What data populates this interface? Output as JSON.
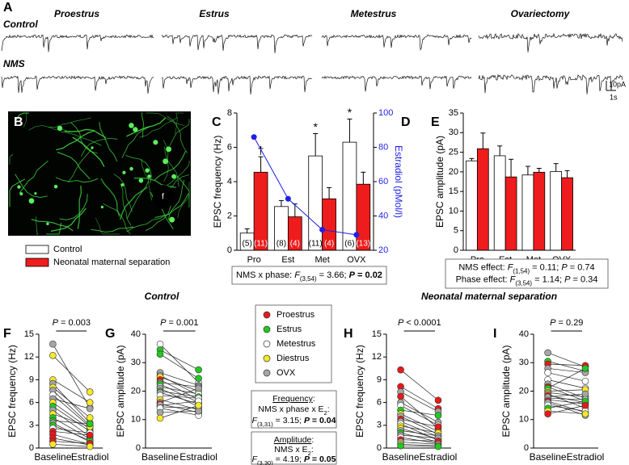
{
  "panel_a": {
    "label": "A",
    "phases": [
      "Proestrus",
      "Estrus",
      "Metestrus",
      "Ovariectomy"
    ],
    "rows": [
      "Control",
      "NMS"
    ],
    "scale": [
      "10pA",
      "1s"
    ]
  },
  "panel_b": {
    "label": "B",
    "marker": "f"
  },
  "panel_d": {
    "label": "D"
  },
  "sections": [
    "Control",
    "Neonatal maternal separation"
  ],
  "phase_legend": [
    {
      "name": "Proestrus",
      "color": "#e8191c"
    },
    {
      "name": "Estrus",
      "color": "#22c922"
    },
    {
      "name": "Metestrus",
      "color": "#ffffff"
    },
    {
      "name": "Diestrus",
      "color": "#f5e92a"
    },
    {
      "name": "OVX",
      "color": "#a6a6a6"
    }
  ],
  "stats_boxes": [
    [
      [
        {
          "text": "Frequency",
          "style": "underline"
        },
        {
          "text": ":"
        }
      ],
      [
        {
          "text": "NMS x phase x E"
        },
        {
          "text": "2",
          "style": "sub"
        },
        {
          "text": ":"
        }
      ],
      [
        {
          "text": "F",
          "style": "italic"
        },
        {
          "text": "(3,31)",
          "style": "sub"
        },
        {
          "text": " = 3.15; "
        },
        {
          "text": "P",
          "style": "bold-italic"
        },
        {
          "text": " = 0.04",
          "style": "bold"
        }
      ]
    ],
    [
      [
        {
          "text": "Amplitude",
          "style": "underline"
        },
        {
          "text": ":"
        }
      ],
      [
        {
          "text": "NMS x E"
        },
        {
          "text": "2",
          "style": "sub"
        },
        {
          "text": ":"
        }
      ],
      [
        {
          "text": "F",
          "style": "italic"
        },
        {
          "text": "(3,30)",
          "style": "sub"
        },
        {
          "text": " = 4.19; "
        },
        {
          "text": "P",
          "style": "bold-italic"
        },
        {
          "text": " = 0.05",
          "style": "bold"
        }
      ]
    ]
  ],
  "chart_data": [
    {
      "type": "bar",
      "panel_label": "C",
      "ylabel": "EPSC frequency (Hz)",
      "y2label": "Estradiol (pMol/l)",
      "categories": [
        "Pro",
        "Est",
        "Met",
        "OVX"
      ],
      "series": [
        {
          "name": "Control",
          "color": "#ffffff",
          "values": [
            1.0,
            2.55,
            5.5,
            6.3
          ],
          "errors": [
            0.25,
            0.35,
            1.3,
            1.35
          ],
          "n_labels": [
            "(5)",
            "(8)",
            "(11)",
            "(6)"
          ],
          "markers": [
            null,
            null,
            "*",
            "*"
          ]
        },
        {
          "name": "Neonatal maternal separation",
          "color": "#ee1c1c",
          "values": [
            4.55,
            1.95,
            3.0,
            3.85
          ],
          "errors": [
            0.9,
            0.75,
            0.65,
            0.7
          ],
          "n_labels": [
            "(11)",
            "(4)",
            "(4)",
            "(13)"
          ],
          "markers": [
            "†",
            null,
            null,
            null
          ]
        }
      ],
      "estradiol": {
        "axis": "y2",
        "color": "#1f1fe8",
        "values": [
          86,
          50,
          32,
          29
        ]
      },
      "ylim": [
        0,
        8
      ],
      "yticks": [
        0,
        2,
        4,
        6,
        8
      ],
      "y2lim": [
        20,
        100
      ],
      "y2ticks": [
        20,
        40,
        60,
        80,
        100
      ],
      "stats": [
        [
          {
            "text": "NMS x phase: "
          },
          {
            "text": "F",
            "style": "italic"
          },
          {
            "text": "(3,54)",
            "style": "sub"
          },
          {
            "text": " = 3.66; "
          },
          {
            "text": "P",
            "style": "bold-italic"
          },
          {
            "text": " = 0.02",
            "style": "bold"
          }
        ]
      ]
    },
    {
      "type": "bar",
      "panel_label": "E",
      "ylabel": "EPSC amplitude (pA)",
      "categories": [
        "Pro",
        "Est",
        "Met",
        "OVX"
      ],
      "series": [
        {
          "name": "Control",
          "color": "#ffffff",
          "values": [
            22.8,
            24.1,
            19.2,
            20.1
          ],
          "errors": [
            0.6,
            2.5,
            2.2,
            2.0
          ]
        },
        {
          "name": "Neonatal maternal separation",
          "color": "#ee1c1c",
          "values": [
            25.9,
            18.7,
            19.9,
            18.5
          ],
          "errors": [
            4.0,
            4.5,
            1.0,
            1.8
          ]
        }
      ],
      "ylim": [
        0,
        35
      ],
      "yticks": [
        0,
        5,
        10,
        15,
        20,
        25,
        30,
        35
      ],
      "stats": [
        [
          {
            "text": "NMS effect: "
          },
          {
            "text": "F",
            "style": "italic"
          },
          {
            "text": "(1,54)",
            "style": "sub"
          },
          {
            "text": " = 0.11; "
          },
          {
            "text": "P",
            "style": "italic"
          },
          {
            "text": " = 0.74"
          }
        ],
        [
          {
            "text": "Phase effect: "
          },
          {
            "text": "F",
            "style": "italic"
          },
          {
            "text": "(3,54)",
            "style": "sub"
          },
          {
            "text": " = 1.14; "
          },
          {
            "text": "P",
            "style": "italic"
          },
          {
            "text": " = 0.34"
          }
        ]
      ]
    },
    {
      "type": "paired",
      "panel_label": "F",
      "ylabel": "EPSC frequency (Hz)",
      "categories": [
        "Baseline",
        "Estradiol"
      ],
      "baseline": [
        13.7,
        12.2,
        9.0,
        8.5,
        8.0,
        7.6,
        7.0,
        6.5,
        6.0,
        5.5,
        5.0,
        4.5,
        4.0,
        3.6,
        3.3,
        3.0,
        2.6,
        2.2,
        1.8,
        1.3,
        0.9,
        0.5
      ],
      "estradiol": [
        5.3,
        7.4,
        6.0,
        3.3,
        4.0,
        3.0,
        2.8,
        5.2,
        2.5,
        2.2,
        1.5,
        2.8,
        1.2,
        3.2,
        0.8,
        1.0,
        2.0,
        1.7,
        0.5,
        0.4,
        0.6,
        0.2
      ],
      "phase": [
        4,
        3,
        3,
        4,
        3,
        4,
        2,
        4,
        3,
        1,
        4,
        3,
        1,
        1,
        4,
        1,
        2,
        0,
        0,
        0,
        0,
        3
      ],
      "ylim": [
        0,
        15
      ],
      "yticks": [
        0,
        3,
        6,
        9,
        12,
        15
      ],
      "p_label": [
        {
          "text": "P",
          "style": "italic"
        },
        {
          "text": " = 0.003"
        }
      ]
    },
    {
      "type": "paired",
      "panel_label": "G",
      "ylabel": "EPSC amplitude (pA)",
      "categories": [
        "Baseline",
        "Estradiol"
      ],
      "baseline": [
        36.5,
        34.5,
        33.0,
        26.5,
        25.5,
        25.0,
        24.0,
        23.0,
        22.5,
        21.5,
        21.0,
        20.0,
        19.5,
        18.5,
        17.0,
        16.0,
        15.5,
        15.0,
        14.5,
        14.0,
        12.5,
        10.5
      ],
      "estradiol": [
        23.0,
        27.5,
        24.5,
        22.0,
        18.5,
        20.0,
        17.0,
        21.5,
        16.0,
        19.0,
        14.5,
        18.0,
        15.5,
        17.5,
        13.5,
        21.0,
        12.5,
        16.5,
        14.0,
        11.5,
        13.0,
        15.0
      ],
      "phase": [
        2,
        1,
        1,
        4,
        4,
        3,
        0,
        4,
        1,
        2,
        4,
        1,
        4,
        2,
        3,
        4,
        0,
        2,
        4,
        2,
        4,
        3
      ],
      "ylim": [
        0,
        40
      ],
      "yticks": [
        0,
        10,
        20,
        30,
        40
      ],
      "p_label": [
        {
          "text": "P",
          "style": "italic"
        },
        {
          "text": " = 0.001"
        }
      ]
    },
    {
      "type": "paired",
      "panel_label": "H",
      "ylabel": "EPSC frequency (Hz)",
      "categories": [
        "Baseline",
        "Estradiol"
      ],
      "baseline": [
        10.3,
        8.1,
        7.4,
        6.8,
        6.0,
        5.6,
        5.0,
        4.5,
        4.2,
        3.8,
        3.5,
        3.2,
        2.9,
        2.6,
        2.3,
        2.0,
        1.7,
        1.4,
        1.1,
        0.8,
        0.5,
        0.3
      ],
      "estradiol": [
        6.3,
        5.2,
        4.8,
        2.6,
        3.4,
        3.0,
        4.3,
        2.2,
        1.8,
        2.8,
        1.5,
        1.0,
        2.0,
        1.2,
        1.6,
        0.8,
        1.3,
        0.6,
        0.9,
        0.5,
        0.3,
        0.2
      ],
      "phase": [
        0,
        0,
        4,
        0,
        4,
        2,
        1,
        3,
        4,
        0,
        4,
        2,
        3,
        3,
        4,
        1,
        4,
        2,
        0,
        4,
        3,
        1
      ],
      "ylim": [
        0,
        15
      ],
      "yticks": [
        0,
        3,
        6,
        9,
        12,
        15
      ],
      "p_label": [
        {
          "text": "P",
          "style": "italic"
        },
        {
          "text": " < 0.0001"
        }
      ]
    },
    {
      "type": "paired",
      "panel_label": "I",
      "ylabel": "EPSC amplitude (pA)",
      "categories": [
        "Baseline",
        "Estradiol"
      ],
      "baseline": [
        33.5,
        30.5,
        29.5,
        28.0,
        26.5,
        24.0,
        22.5,
        21.5,
        21.0,
        20.0,
        19.5,
        19.0,
        18.5,
        18.0,
        17.5,
        17.0,
        16.5,
        16.0,
        15.0,
        14.0,
        13.0,
        12.0
      ],
      "estradiol": [
        28.5,
        27.0,
        29.0,
        26.5,
        23.5,
        21.0,
        17.5,
        16.5,
        28.0,
        20.5,
        18.0,
        14.0,
        16.0,
        19.0,
        17.0,
        15.5,
        12.5,
        11.5,
        13.0,
        16.5,
        12.0,
        15.0
      ],
      "phase": [
        4,
        1,
        0,
        4,
        2,
        2,
        4,
        0,
        1,
        3,
        4,
        3,
        0,
        4,
        2,
        4,
        0,
        4,
        2,
        1,
        3,
        0
      ],
      "ylim": [
        0,
        40
      ],
      "yticks": [
        0,
        10,
        20,
        30,
        40
      ],
      "p_label": [
        {
          "text": "P",
          "style": "italic"
        },
        {
          "text": " = 0.29"
        }
      ]
    }
  ]
}
